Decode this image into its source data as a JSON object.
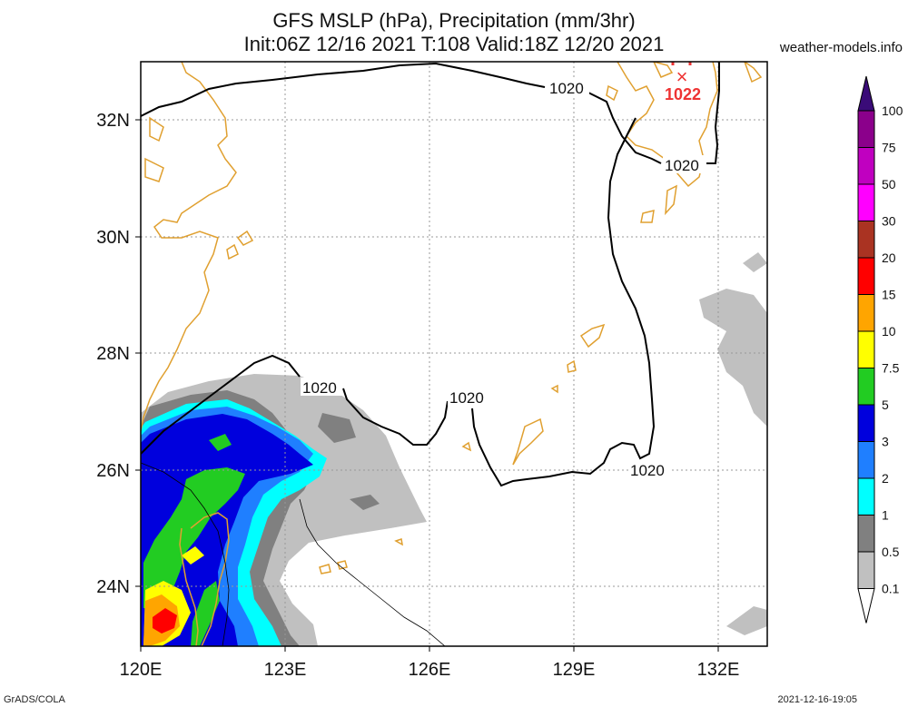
{
  "title_line1": "GFS MSLP (hPa), Precipitation (mm/3hr)",
  "title_line2": "Init:06Z 12/16 2021 T:108 Valid:18Z 12/20 2021",
  "site": "weather-models.info",
  "footer_left": "GrADS/COLA",
  "footer_right": "2021-12-16-19:05",
  "lat_labels": [
    "32N",
    "30N",
    "28N",
    "26N",
    "24N"
  ],
  "lon_labels": [
    "120E",
    "123E",
    "126E",
    "129E",
    "132E"
  ],
  "isobar_labels": [
    "1020",
    "1020",
    "1020",
    "1020",
    "1020"
  ],
  "high_center": {
    "symbol": "×",
    "value": "1022"
  },
  "colorbar": {
    "labels": [
      "100",
      "75",
      "50",
      "30",
      "20",
      "15",
      "10",
      "7.5",
      "5",
      "3",
      "2",
      "1",
      "0.5",
      "0.1"
    ],
    "colors": [
      "#8b008b",
      "#c000c0",
      "#ff00ff",
      "#aa3322",
      "#ff0000",
      "#ffa500",
      "#ffff00",
      "#22cc22",
      "#0000dd",
      "#1f7fff",
      "#00ffff",
      "#808080",
      "#c0c0c0",
      "#ffffff"
    ],
    "top_color": "#3a0b78"
  },
  "colors": {
    "coast": "#e0a030",
    "isobar": "#000000",
    "high": "#ee3333"
  }
}
